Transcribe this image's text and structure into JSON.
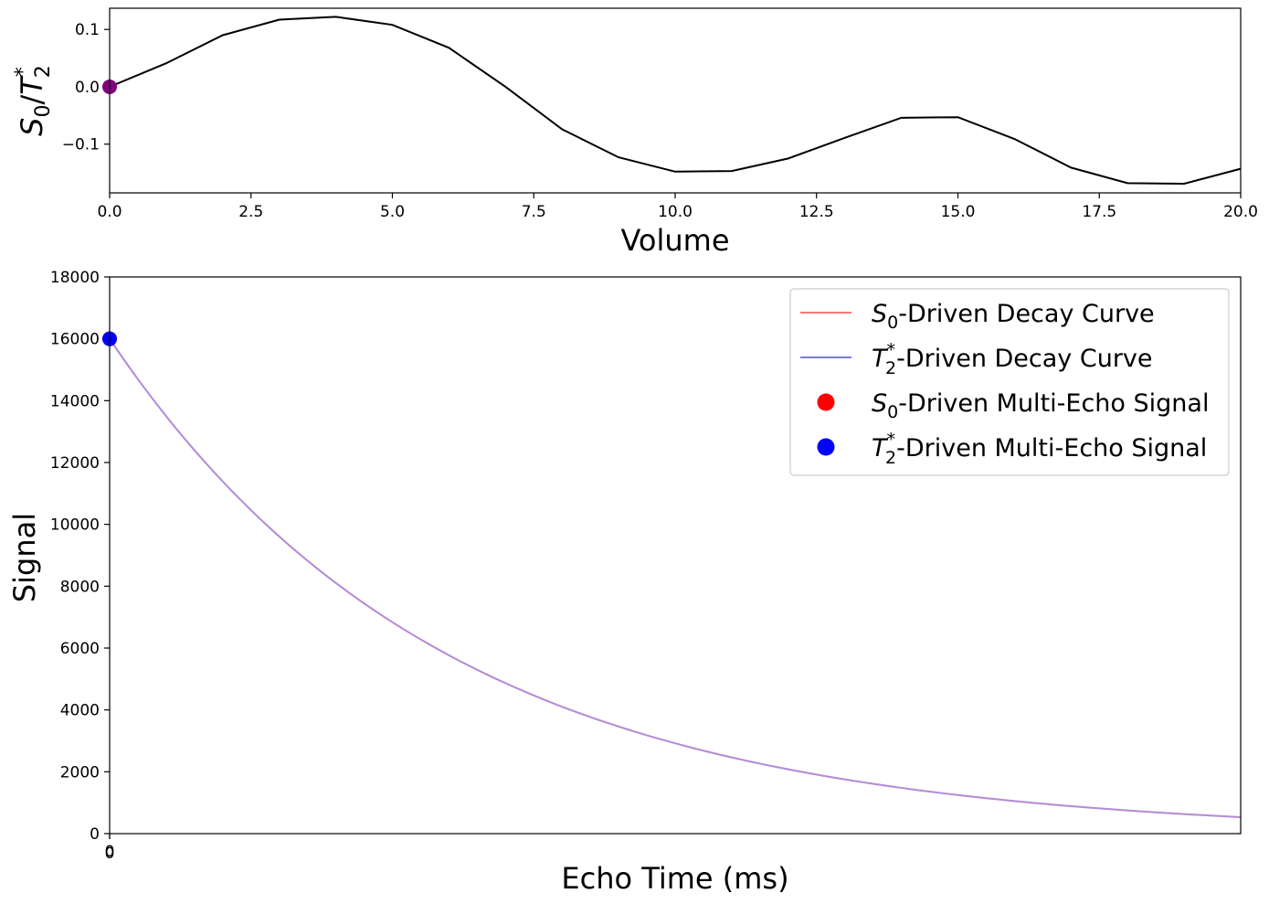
{
  "chart_data": [
    {
      "type": "line",
      "xlabel": "Volume",
      "ylabel": {
        "base": "S",
        "sub1": "0",
        "slash": "/",
        "base2": "T",
        "sub2": "2",
        "sup2": "*"
      },
      "xlim": [
        0,
        20
      ],
      "ylim": [
        -0.185,
        0.137
      ],
      "xticks": [
        0,
        2.5,
        5,
        7.5,
        10,
        12.5,
        15,
        17.5,
        20
      ],
      "xtick_labels": [
        "0.0",
        "2.5",
        "5.0",
        "7.5",
        "10.0",
        "12.5",
        "15.0",
        "17.5",
        "20.0"
      ],
      "yticks": [
        0.1,
        0.0,
        -0.1
      ],
      "ytick_labels": [
        "0.1",
        "0.0",
        "−0.1"
      ],
      "line_color": "#000000",
      "marker_color": "#800080",
      "series": [
        {
          "x": [
            0,
            1,
            2,
            3,
            4,
            5,
            6,
            7,
            8,
            9,
            10,
            11,
            12,
            13,
            14,
            15,
            16,
            17,
            18,
            19,
            20
          ],
          "values": [
            0.0,
            0.041,
            0.09,
            0.117,
            0.122,
            0.108,
            0.068,
            0.0,
            -0.074,
            -0.123,
            -0.148,
            -0.147,
            -0.125,
            -0.089,
            -0.054,
            -0.053,
            -0.091,
            -0.141,
            -0.168,
            -0.169,
            -0.143
          ]
        }
      ],
      "marker": {
        "x": 0,
        "y": 0.0
      }
    },
    {
      "type": "line",
      "xlabel": "Echo Time (ms)",
      "ylabel": "Signal",
      "xlim": [
        0,
        100
      ],
      "ylim": [
        0,
        18000
      ],
      "xtick_labels": [
        "0",
        "0"
      ],
      "yticks": [
        0,
        2000,
        4000,
        6000,
        8000,
        10000,
        12000,
        14000,
        16000,
        18000
      ],
      "ytick_labels": [
        "0",
        "2000",
        "4000",
        "6000",
        "8000",
        "10000",
        "12000",
        "14000",
        "16000",
        "18000"
      ],
      "curve": {
        "s0": 16000,
        "t2star": 29.4,
        "samples": 120
      },
      "points": [
        {
          "x": 0,
          "y": 16000
        }
      ],
      "legend_position": "upper-right",
      "colors": {
        "s0_curve": "#ff6666",
        "t2_curve": "#6666ff",
        "blended_curve": "#8040c0",
        "s0_point": "#ff0000",
        "t2_point": "#0000ff"
      },
      "legend": [
        {
          "kind": "line",
          "color": "#ff7777",
          "base": "S",
          "sub": "0",
          "sup": "",
          "label": "-Driven Decay Curve"
        },
        {
          "kind": "line",
          "color": "#7777ee",
          "base": "T",
          "sub": "2",
          "sup": "*",
          "label": "-Driven Decay Curve"
        },
        {
          "kind": "dot",
          "color": "#ff0000",
          "base": "S",
          "sub": "0",
          "sup": "",
          "label": "-Driven Multi-Echo Signal"
        },
        {
          "kind": "dot",
          "color": "#0000ff",
          "base": "T",
          "sub": "2",
          "sup": "*",
          "label": "-Driven Multi-Echo Signal"
        }
      ]
    }
  ]
}
